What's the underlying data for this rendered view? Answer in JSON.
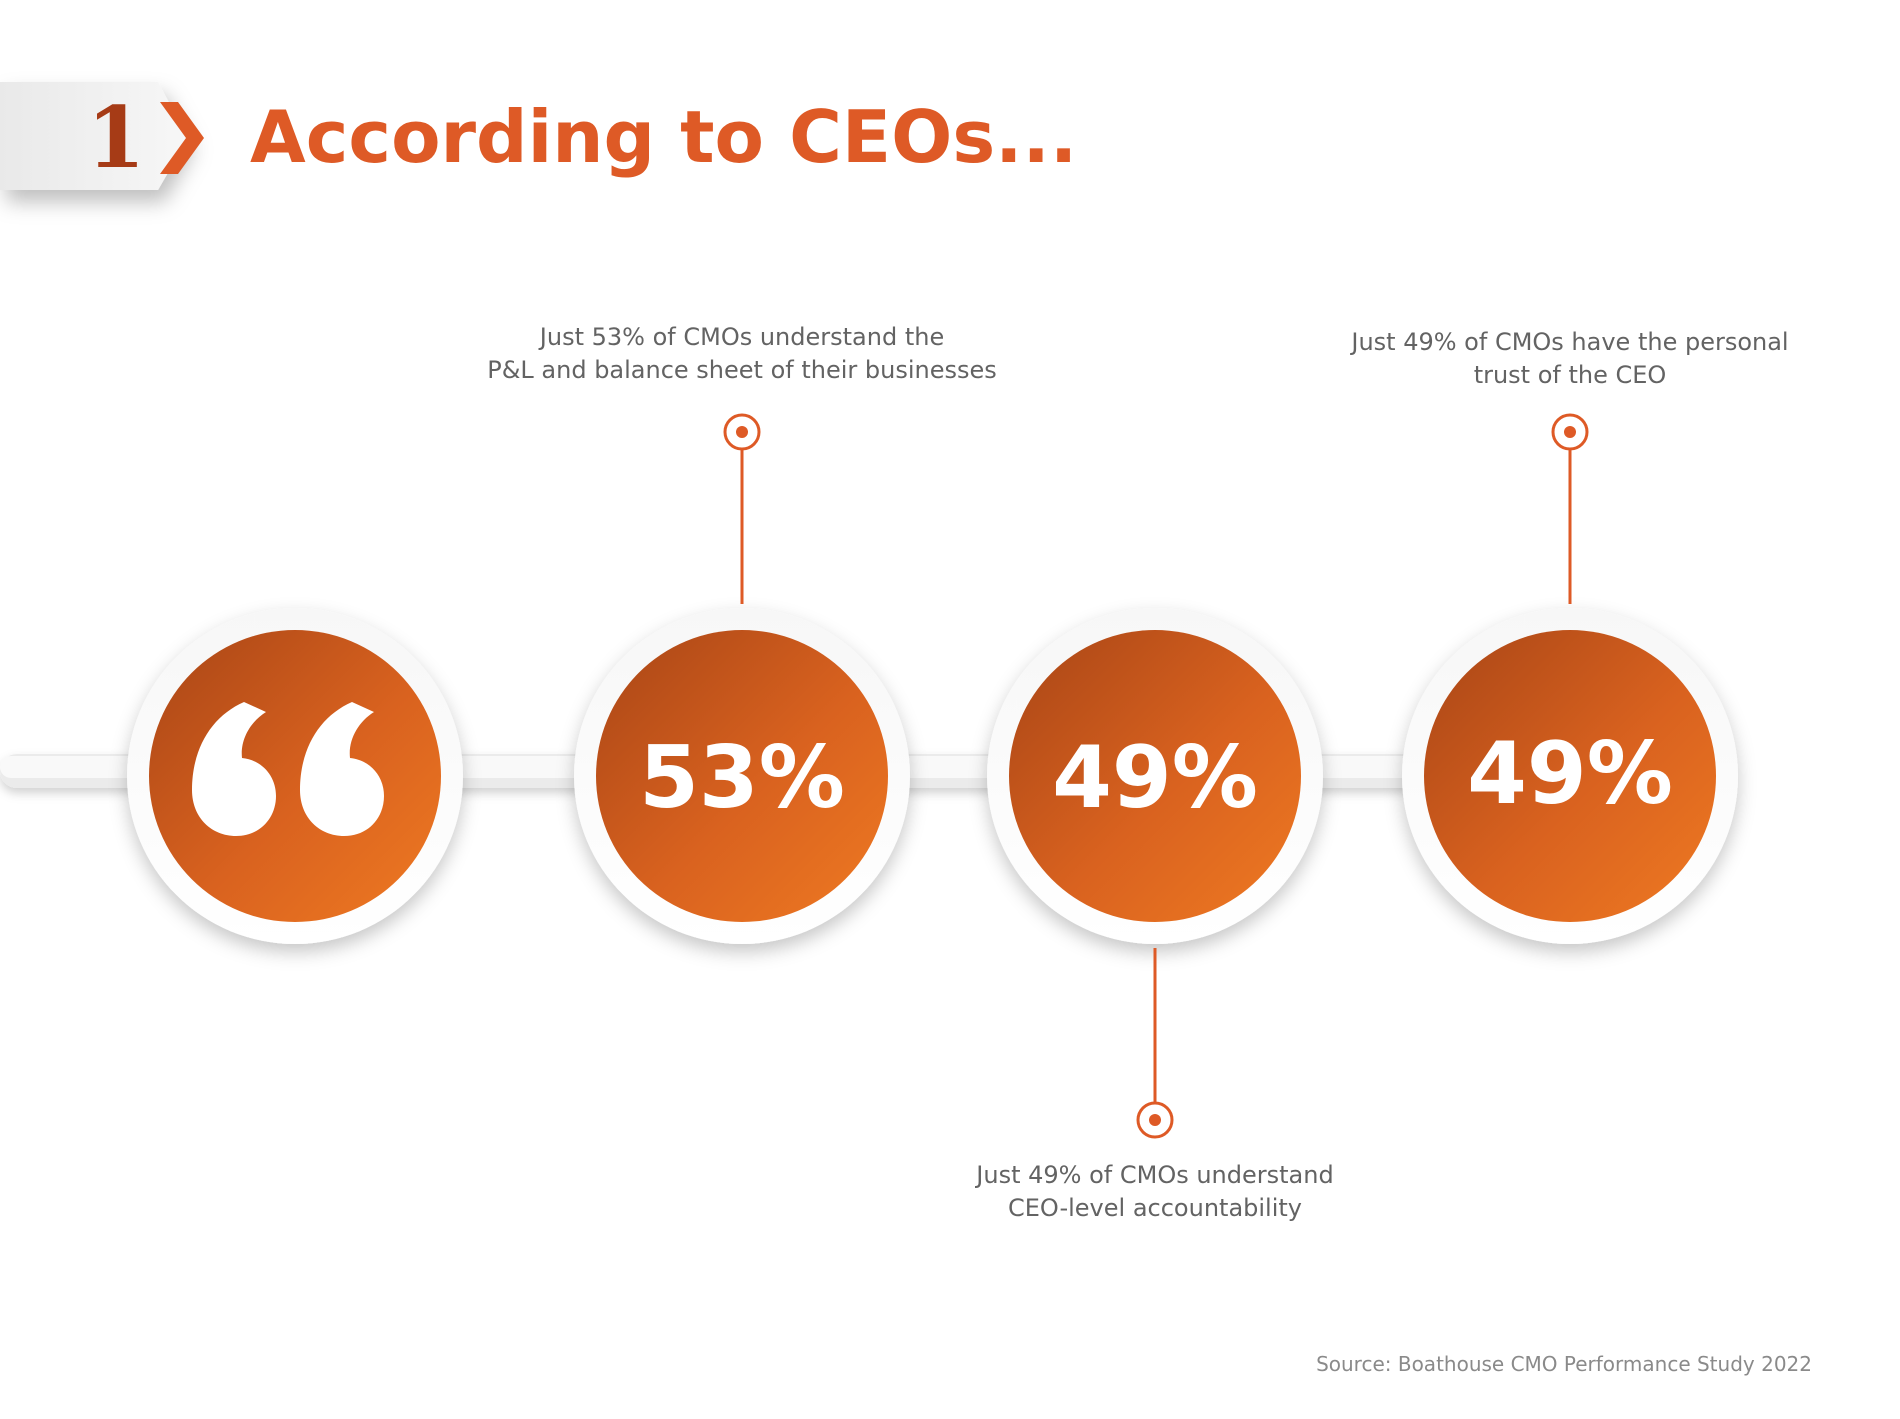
{
  "header": {
    "number": "1",
    "title": "According to CEOs..."
  },
  "stats": [
    {
      "value": "53%",
      "label_lines": [
        "Just 53% of CMOs understand the",
        "P&L and balance sheet of their businesses"
      ],
      "position": "top"
    },
    {
      "value": "49%",
      "label_lines": [
        "Just 49% of CMOs understand",
        "CEO-level accountability"
      ],
      "position": "bottom"
    },
    {
      "value": "49%",
      "label_lines": [
        "Just 49% of CMOs have the personal",
        "trust of the CEO"
      ],
      "position": "top"
    }
  ],
  "quote_icon": "quote-icon",
  "source": "Source: Boathouse CMO Performance Study 2022",
  "colors": {
    "accent": "#de5a26",
    "accent_dark": "#a63b16",
    "circle_start": "#a84516",
    "circle_end": "#ef7a22",
    "connector": "#e5e5e5",
    "text_gray": "#636363"
  }
}
